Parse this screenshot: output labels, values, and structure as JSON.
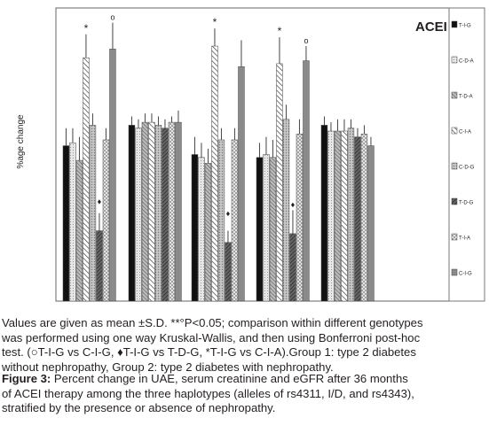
{
  "chart_data": {
    "type": "bar",
    "title": "ACEI",
    "ylabel": "%age change",
    "xlabel": "",
    "ylim": [
      0,
      100
    ],
    "groups": 5,
    "legend_position": "right",
    "series": [
      {
        "name": "T-I-G",
        "values": [
          53,
          60,
          50,
          49,
          60
        ],
        "errors": [
          6,
          3,
          6,
          5,
          3
        ],
        "pattern": "solid-black"
      },
      {
        "name": "C-D-A",
        "values": [
          54,
          59,
          49,
          50,
          58
        ],
        "errors": [
          5,
          3,
          5,
          6,
          3
        ],
        "pattern": "dots-light"
      },
      {
        "name": "T-D-A",
        "values": [
          48,
          61,
          47,
          49,
          58
        ],
        "errors": [
          8,
          3,
          5,
          6,
          4
        ],
        "pattern": "hatch-dense-gray"
      },
      {
        "name": "C-I-A",
        "values": [
          83,
          61,
          87,
          81,
          58
        ],
        "errors": [
          8,
          3,
          6,
          9,
          4
        ],
        "pattern": "diagonal-white"
      },
      {
        "name": "C-D-G",
        "values": [
          60,
          60,
          55,
          62,
          59
        ],
        "errors": [
          4,
          3,
          4,
          5,
          3
        ],
        "pattern": "gray-dotted"
      },
      {
        "name": "T-D-G",
        "values": [
          24,
          59,
          20,
          23,
          56
        ],
        "errors": [
          6,
          3,
          4,
          8,
          3
        ],
        "pattern": "hatch-dark"
      },
      {
        "name": "T-I-A",
        "values": [
          55,
          61,
          55,
          57,
          57
        ],
        "errors": [
          4,
          2,
          4,
          5,
          3
        ],
        "pattern": "crosshatch-light"
      },
      {
        "name": "C-I-G",
        "values": [
          86,
          61,
          80,
          82,
          53
        ],
        "errors": [
          9,
          4,
          9,
          5,
          3
        ],
        "pattern": "solid-gray"
      }
    ],
    "annotations": [
      {
        "group": 0,
        "series": "C-I-A",
        "symbol": "*"
      },
      {
        "group": 0,
        "series": "C-I-G",
        "symbol": "o"
      },
      {
        "group": 0,
        "series": "T-D-G",
        "symbol": "♦"
      },
      {
        "group": 2,
        "series": "C-I-A",
        "symbol": "*"
      },
      {
        "group": 2,
        "series": "T-D-G",
        "symbol": "♦"
      },
      {
        "group": 3,
        "series": "C-I-A",
        "symbol": "*"
      },
      {
        "group": 3,
        "series": "C-I-G",
        "symbol": "o"
      },
      {
        "group": 3,
        "series": "T-D-G",
        "symbol": "♦"
      }
    ]
  },
  "notes": {
    "line1": "Values are given as mean ±S.D. **°P<0.05; comparison within different genotypes",
    "line2": "was performed using one way Kruskal-Wallis, and then using Bonferroni post-hoc",
    "line3": "test. (○T-I-G vs C-I-G, ♦T-I-G vs T-D-G, *T-I-G vs C-I-A).Group 1: type 2 diabetes",
    "line4": "without nephropathy, Group 2: type 2 diabetes with nephropathy."
  },
  "caption": {
    "label": "Figure 3:",
    "line1": " Percent change in UAE, serum creatinine and eGFR after 36 months",
    "line2": "of ACEI therapy among the three haplotypes (alleles of rs4311, I/D, and rs4343),",
    "line3": "stratified by the presence or absence of nephropathy."
  },
  "colors": {
    "text": "#231f20",
    "bar_black": "#111111",
    "bar_gray": "#8a8a8a",
    "frame": "#555555",
    "errorbar": "#444444"
  }
}
